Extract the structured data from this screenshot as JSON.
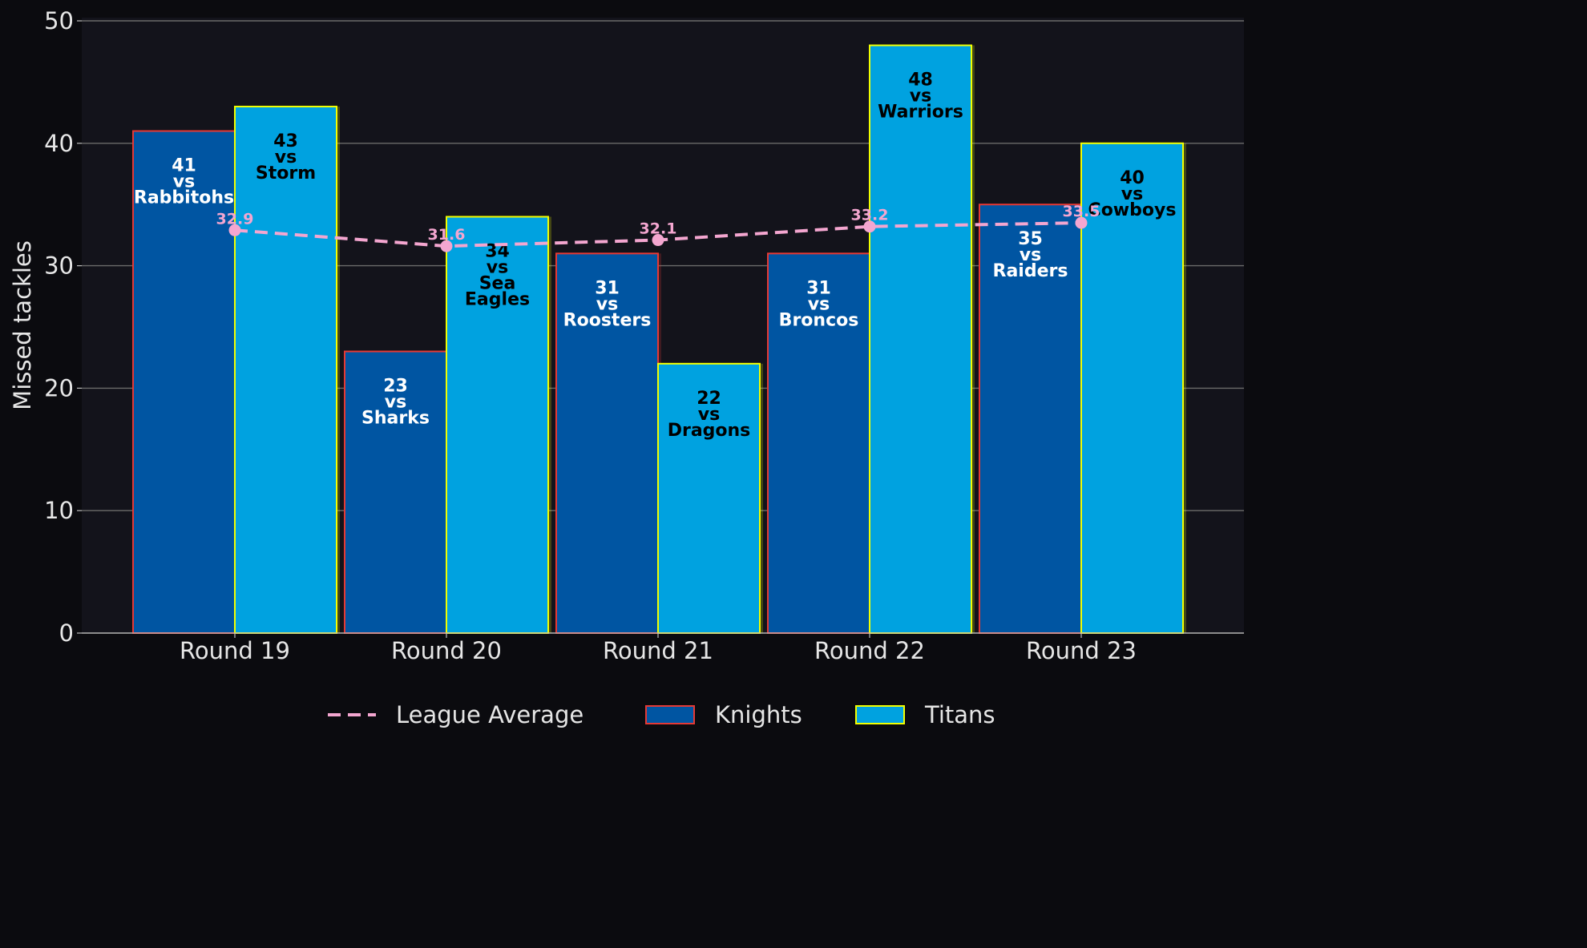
{
  "chart_data": {
    "type": "bar",
    "title": "",
    "xlabel": "",
    "ylabel": "Missed tackles",
    "ylim": [
      0,
      50
    ],
    "yticks": [
      0,
      10,
      20,
      30,
      40,
      50
    ],
    "grid": "horizontal",
    "legend_position": "bottom",
    "categories": [
      "Round 19",
      "Round 20",
      "Round 21",
      "Round 22",
      "Round 23"
    ],
    "series": [
      {
        "name": "Knights",
        "kind": "bar",
        "fill": "#0055a2",
        "edge": "#e53935",
        "label_color": "#ffffff",
        "values": [
          41,
          23,
          31,
          31,
          35
        ],
        "labels": [
          [
            "41",
            "vs",
            "Rabbitohs"
          ],
          [
            "23",
            "vs",
            "Sharks"
          ],
          [
            "31",
            "vs",
            "Roosters"
          ],
          [
            "31",
            "vs",
            "Broncos"
          ],
          [
            "35",
            "vs",
            "Raiders"
          ]
        ]
      },
      {
        "name": "Titans",
        "kind": "bar",
        "fill": "#00a2e0",
        "edge": "#f2ff00",
        "label_color": "#000000",
        "values": [
          43,
          34,
          22,
          48,
          40
        ],
        "labels": [
          [
            "43",
            "vs",
            "Storm"
          ],
          [
            "34",
            "vs",
            "Sea",
            "Eagles"
          ],
          [
            "22",
            "vs",
            "Dragons"
          ],
          [
            "48",
            "vs",
            "Warriors"
          ],
          [
            "40",
            "vs",
            "Cowboys"
          ]
        ]
      },
      {
        "name": "League Average",
        "kind": "line",
        "color": "#f4a6d0",
        "style": "dashed",
        "values": [
          32.9,
          31.6,
          32.1,
          33.2,
          33.5
        ],
        "labels": [
          "32.9",
          "31.6",
          "32.1",
          "33.2",
          "33.5"
        ]
      }
    ]
  }
}
